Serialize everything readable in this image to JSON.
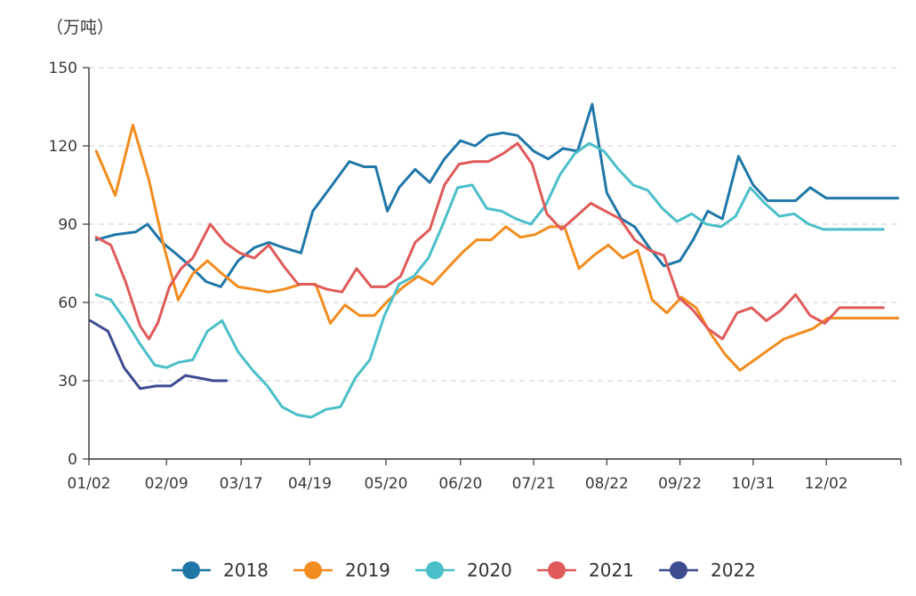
{
  "chart_data": {
    "type": "line",
    "title": "",
    "unit_label": "（万吨）",
    "xlabel": "",
    "ylabel": "",
    "ylim": [
      0,
      150
    ],
    "yticks": [
      0,
      30,
      60,
      90,
      120,
      150
    ],
    "grid": "horizontal dashed",
    "legend_position": "bottom",
    "x_tick_labels": [
      {
        "label": "01/02",
        "week": 0
      },
      {
        "label": "02/09",
        "week": 5.3
      },
      {
        "label": "03/17",
        "week": 10.4
      },
      {
        "label": "04/19",
        "week": 15.1
      },
      {
        "label": "05/20",
        "week": 20.3
      },
      {
        "label": "06/20",
        "week": 25.4
      },
      {
        "label": "07/21",
        "week": 30.4
      },
      {
        "label": "08/22",
        "week": 35.4
      },
      {
        "label": "09/22",
        "week": 40.4
      },
      {
        "label": "10/31",
        "week": 45.4
      },
      {
        "label": "12/02",
        "week": 50.4
      }
    ],
    "x_range_weeks": [
      0,
      55.5
    ],
    "series": [
      {
        "name": "2018",
        "color": "#1f77a8",
        "x": [
          0.5,
          1.8,
          3.2,
          4,
          5,
          6.1,
          7.1,
          8,
          9,
          10.2,
          11.3,
          12.3,
          13.3,
          14.5,
          15.3,
          16.5,
          17.8,
          18.8,
          19.6,
          20.4,
          21.2,
          22.3,
          23.3,
          24.3,
          25.4,
          26.4,
          27.3,
          28.3,
          29.3,
          30.4,
          31.4,
          32.4,
          33.4,
          34.4,
          35.4,
          36.4,
          37.3,
          38.3,
          39.3,
          40.4,
          41.3,
          42.3,
          43.3,
          44.4,
          45.4,
          46.4,
          47.3,
          48.3,
          49.3,
          50.4,
          51.3,
          52.3,
          53.3,
          54.3,
          55.3
        ],
        "y": [
          84,
          86,
          87,
          90,
          83,
          78,
          73,
          68,
          66,
          76,
          81,
          83,
          81,
          79,
          95,
          104,
          114,
          112,
          112,
          95,
          104,
          111,
          106,
          115,
          122,
          120,
          124,
          125,
          124,
          118,
          115,
          119,
          118,
          136,
          102,
          92,
          89,
          81,
          74,
          76,
          84,
          95,
          92,
          116,
          105,
          99,
          99,
          99,
          104,
          100,
          100,
          100,
          100,
          100,
          100
        ]
      },
      {
        "name": "2019",
        "color": "#f28c1e",
        "x": [
          0.5,
          1.8,
          3,
          4.1,
          5.1,
          6.1,
          7.1,
          8.1,
          9.1,
          10.2,
          11.3,
          12.3,
          13.3,
          14.5,
          15.5,
          16.5,
          17.5,
          18.5,
          19.5,
          20.5,
          21.5,
          22.5,
          23.5,
          24.5,
          25.5,
          26.5,
          27.5,
          28.5,
          29.5,
          30.5,
          31.5,
          32.5,
          33.5,
          34.5,
          35.5,
          36.5,
          37.5,
          38.5,
          39.5,
          40.5,
          41.5,
          42.5,
          43.5,
          44.5,
          45.5,
          46.5,
          47.5,
          48.5,
          49.5,
          50.5,
          51.5,
          52.5,
          53.5,
          54.5,
          55.3
        ],
        "y": [
          118,
          101,
          128,
          107,
          82,
          61,
          71,
          76,
          71,
          66,
          65,
          64,
          65,
          67,
          67,
          52,
          59,
          55,
          55,
          61,
          66,
          70,
          67,
          73,
          79,
          84,
          84,
          89,
          85,
          86,
          89,
          89,
          73,
          78,
          82,
          77,
          80,
          61,
          56,
          62,
          58,
          48,
          40,
          34,
          38,
          42,
          46,
          48,
          50,
          54,
          54,
          54,
          54,
          54,
          54
        ]
      },
      {
        "name": "2020",
        "color": "#4bbfc9",
        "x": [
          0.5,
          1.5,
          2.5,
          3.5,
          4.5,
          5.3,
          6.1,
          7.1,
          8.1,
          9.1,
          10.2,
          11.2,
          12.2,
          13.2,
          14.2,
          15.2,
          16.2,
          17.2,
          18.2,
          19.2,
          20.2,
          21.2,
          22.2,
          23.2,
          24.2,
          25.2,
          26.2,
          27.2,
          28.2,
          29.2,
          30.2,
          31.2,
          32.2,
          33.2,
          34.2,
          35.2,
          36.2,
          37.2,
          38.2,
          39.2,
          40.2,
          41.2,
          42.2,
          43.2,
          44.2,
          45.2,
          46.2,
          47.2,
          48.2,
          49.2,
          50.2,
          51.2,
          52.2,
          53.2,
          54.3
        ],
        "y": [
          63,
          61,
          53,
          44,
          36,
          35,
          37,
          38,
          49,
          53,
          41,
          34,
          28,
          20,
          17,
          16,
          19,
          20,
          31,
          38,
          55,
          67,
          70,
          77,
          90,
          104,
          105,
          96,
          95,
          92,
          90,
          97,
          109,
          117,
          121,
          118,
          111,
          105,
          103,
          96,
          91,
          94,
          90,
          89,
          93,
          104,
          98,
          93,
          94,
          90,
          88,
          88,
          88,
          88,
          88
        ]
      },
      {
        "name": "2021",
        "color": "#e05a5a",
        "x": [
          0.5,
          1.5,
          2.5,
          3.5,
          4.1,
          4.7,
          5.5,
          6.3,
          7.1,
          8.3,
          9.3,
          10.3,
          11.3,
          12.3,
          13.3,
          14.3,
          15.3,
          16.3,
          17.3,
          18.3,
          19.3,
          20.3,
          21.3,
          22.3,
          23.3,
          24.3,
          25.3,
          26.3,
          27.3,
          28.3,
          29.3,
          30.3,
          31.3,
          32.3,
          33.3,
          34.3,
          35.3,
          36.3,
          37.3,
          38.3,
          39.3,
          40.3,
          41.3,
          42.3,
          43.3,
          44.3,
          45.3,
          46.3,
          47.3,
          48.3,
          49.3,
          50.3,
          51.3,
          52.3,
          53.3,
          54.3
        ],
        "y": [
          85,
          82,
          68,
          51,
          46,
          52,
          66,
          73,
          77,
          90,
          83,
          79,
          77,
          82,
          74,
          67,
          67,
          65,
          64,
          73,
          66,
          66,
          70,
          83,
          88,
          105,
          113,
          114,
          114,
          117,
          121,
          113,
          94,
          88,
          93,
          98,
          95,
          92,
          84,
          80,
          78,
          62,
          57,
          50,
          46,
          56,
          58,
          53,
          57,
          63,
          55,
          52,
          58,
          58,
          58,
          58
        ]
      },
      {
        "name": "2022",
        "color": "#3d4b91",
        "x": [
          0.1,
          1.3,
          2.4,
          3.5,
          4.6,
          5.6,
          6.6,
          7.6,
          8.5,
          9.4
        ],
        "y": [
          53,
          49,
          35,
          27,
          28,
          28,
          32,
          31,
          30,
          30
        ]
      }
    ]
  }
}
